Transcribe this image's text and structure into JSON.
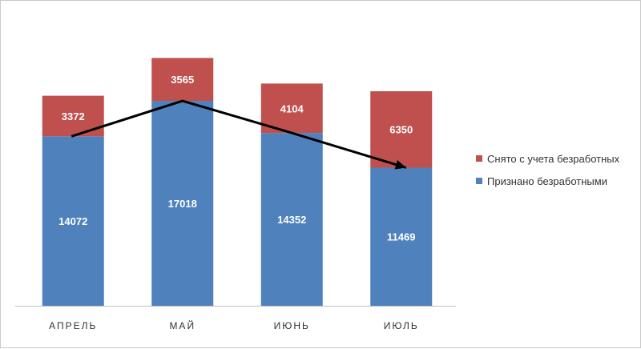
{
  "chart_data": {
    "type": "bar",
    "stacked": true,
    "categories": [
      "АПРЕЛЬ",
      "МАЙ",
      "ИЮНЬ",
      "ИЮЛЬ"
    ],
    "series": [
      {
        "name": "Признано безработными",
        "color": "#4f81bd",
        "values": [
          14072,
          17018,
          14352,
          11469
        ]
      },
      {
        "name": "Снято с учета безработных",
        "color": "#c0504d",
        "values": [
          3372,
          3565,
          4104,
          6350
        ]
      }
    ],
    "trend_line": {
      "color": "#000000",
      "arrow": true,
      "values": [
        14072,
        17018,
        14352,
        11469
      ]
    },
    "ylim": [
      0,
      24000
    ],
    "grid": false,
    "legend_position": "right"
  }
}
